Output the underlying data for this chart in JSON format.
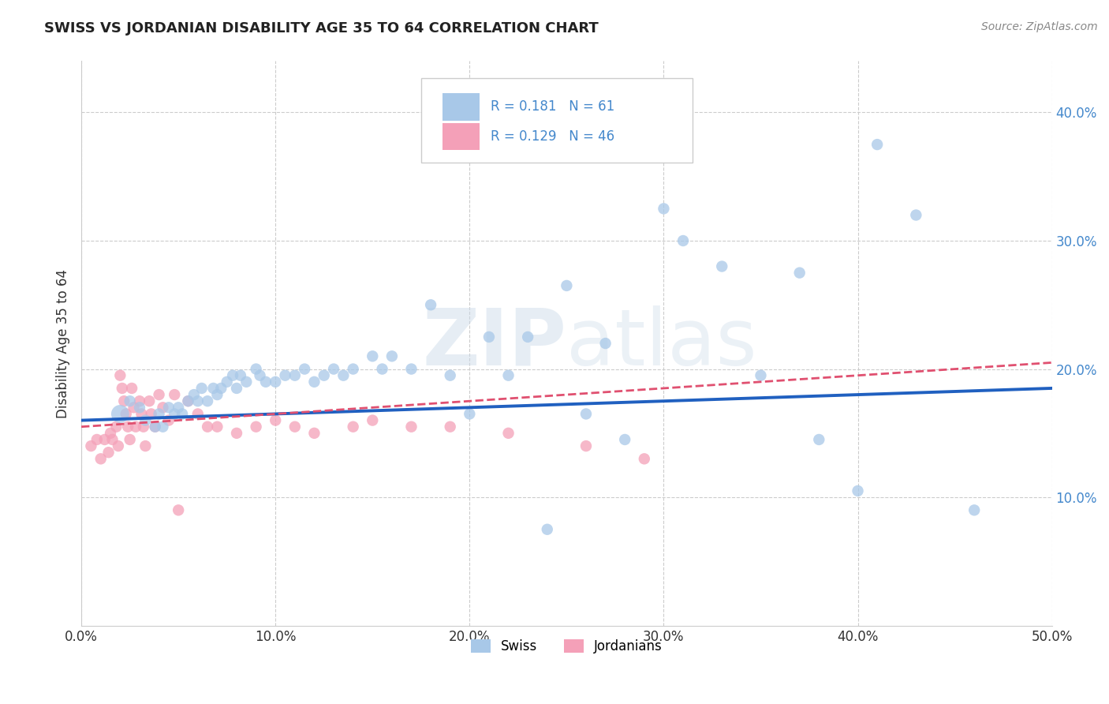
{
  "title": "SWISS VS JORDANIAN DISABILITY AGE 35 TO 64 CORRELATION CHART",
  "source_text": "Source: ZipAtlas.com",
  "ylabel": "Disability Age 35 to 64",
  "xlim": [
    0.0,
    0.5
  ],
  "ylim": [
    0.0,
    0.44
  ],
  "xtick_labels": [
    "0.0%",
    "10.0%",
    "20.0%",
    "30.0%",
    "40.0%",
    "50.0%"
  ],
  "xtick_vals": [
    0.0,
    0.1,
    0.2,
    0.3,
    0.4,
    0.5
  ],
  "ytick_labels": [
    "10.0%",
    "20.0%",
    "30.0%",
    "40.0%"
  ],
  "ytick_vals": [
    0.1,
    0.2,
    0.3,
    0.4
  ],
  "swiss_color": "#a8c8e8",
  "jordan_color": "#f4a0b8",
  "swiss_line_color": "#2060c0",
  "jordan_line_color": "#e05070",
  "watermark_zip": "ZIP",
  "watermark_atlas": "atlas",
  "legend_r_swiss": "0.181",
  "legend_n_swiss": "61",
  "legend_r_jordan": "0.129",
  "legend_n_jordan": "46",
  "swiss_scatter_x": [
    0.02,
    0.025,
    0.03,
    0.033,
    0.038,
    0.04,
    0.042,
    0.045,
    0.048,
    0.05,
    0.052,
    0.055,
    0.058,
    0.06,
    0.062,
    0.065,
    0.068,
    0.07,
    0.072,
    0.075,
    0.078,
    0.08,
    0.082,
    0.085,
    0.09,
    0.092,
    0.095,
    0.1,
    0.105,
    0.11,
    0.115,
    0.12,
    0.125,
    0.13,
    0.135,
    0.14,
    0.15,
    0.155,
    0.16,
    0.17,
    0.18,
    0.19,
    0.2,
    0.21,
    0.22,
    0.23,
    0.24,
    0.25,
    0.26,
    0.27,
    0.28,
    0.3,
    0.31,
    0.33,
    0.35,
    0.37,
    0.38,
    0.4,
    0.41,
    0.43,
    0.46
  ],
  "swiss_scatter_y": [
    0.165,
    0.175,
    0.17,
    0.16,
    0.155,
    0.165,
    0.155,
    0.17,
    0.165,
    0.17,
    0.165,
    0.175,
    0.18,
    0.175,
    0.185,
    0.175,
    0.185,
    0.18,
    0.185,
    0.19,
    0.195,
    0.185,
    0.195,
    0.19,
    0.2,
    0.195,
    0.19,
    0.19,
    0.195,
    0.195,
    0.2,
    0.19,
    0.195,
    0.2,
    0.195,
    0.2,
    0.21,
    0.2,
    0.21,
    0.2,
    0.25,
    0.195,
    0.165,
    0.225,
    0.195,
    0.225,
    0.075,
    0.265,
    0.165,
    0.22,
    0.145,
    0.325,
    0.3,
    0.28,
    0.195,
    0.275,
    0.145,
    0.105,
    0.375,
    0.32,
    0.09
  ],
  "swiss_scatter_sizes": [
    150,
    60,
    60,
    60,
    60,
    60,
    60,
    60,
    60,
    60,
    60,
    60,
    60,
    60,
    60,
    60,
    60,
    60,
    60,
    60,
    60,
    60,
    60,
    60,
    60,
    60,
    60,
    60,
    60,
    60,
    60,
    60,
    60,
    60,
    60,
    60,
    60,
    60,
    60,
    60,
    60,
    60,
    60,
    60,
    60,
    60,
    60,
    60,
    60,
    60,
    60,
    60,
    60,
    60,
    60,
    60,
    60,
    60,
    60,
    60,
    60
  ],
  "jordan_scatter_x": [
    0.005,
    0.008,
    0.01,
    0.012,
    0.014,
    0.015,
    0.016,
    0.018,
    0.019,
    0.02,
    0.021,
    0.022,
    0.023,
    0.024,
    0.025,
    0.026,
    0.027,
    0.028,
    0.03,
    0.031,
    0.032,
    0.033,
    0.035,
    0.036,
    0.038,
    0.04,
    0.042,
    0.045,
    0.048,
    0.05,
    0.055,
    0.06,
    0.065,
    0.07,
    0.08,
    0.09,
    0.1,
    0.11,
    0.12,
    0.14,
    0.15,
    0.17,
    0.19,
    0.22,
    0.26,
    0.29
  ],
  "jordan_scatter_y": [
    0.14,
    0.145,
    0.13,
    0.145,
    0.135,
    0.15,
    0.145,
    0.155,
    0.14,
    0.195,
    0.185,
    0.175,
    0.165,
    0.155,
    0.145,
    0.185,
    0.17,
    0.155,
    0.175,
    0.165,
    0.155,
    0.14,
    0.175,
    0.165,
    0.155,
    0.18,
    0.17,
    0.16,
    0.18,
    0.09,
    0.175,
    0.165,
    0.155,
    0.155,
    0.15,
    0.155,
    0.16,
    0.155,
    0.15,
    0.155,
    0.16,
    0.155,
    0.155,
    0.15,
    0.14,
    0.13
  ],
  "jordan_scatter_sizes": [
    60,
    60,
    60,
    60,
    60,
    60,
    60,
    60,
    60,
    60,
    60,
    60,
    60,
    60,
    60,
    60,
    60,
    60,
    60,
    60,
    60,
    60,
    60,
    60,
    60,
    60,
    60,
    60,
    60,
    60,
    60,
    60,
    60,
    60,
    60,
    60,
    60,
    60,
    60,
    60,
    60,
    60,
    60,
    60,
    60,
    60
  ],
  "background_color": "#ffffff",
  "grid_color": "#cccccc",
  "tick_color": "#4488cc",
  "legend_text_color": "#4488cc"
}
